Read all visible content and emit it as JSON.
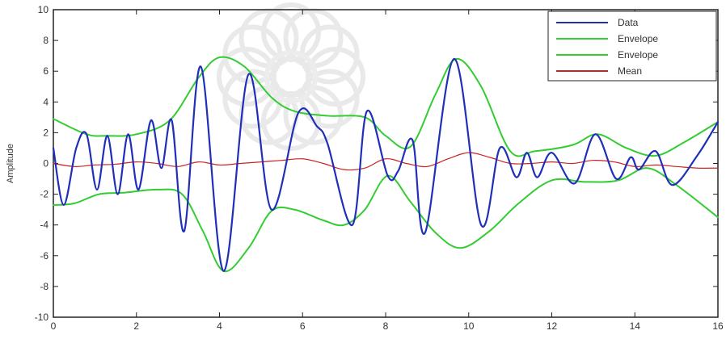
{
  "chart_data": {
    "type": "line",
    "ylabel": "Amplitude",
    "xlim": [
      0,
      16
    ],
    "ylim": [
      -10,
      10
    ],
    "x_ticks": [
      0,
      2,
      4,
      6,
      8,
      10,
      12,
      14,
      16
    ],
    "y_ticks": [
      -10,
      -8,
      -6,
      -4,
      -2,
      0,
      2,
      4,
      6,
      8,
      10
    ],
    "x_tick_labels": [
      "0",
      "2",
      "4",
      "6",
      "8",
      "10",
      "12",
      "14",
      "16"
    ],
    "y_tick_labels": [
      "-10",
      "-8",
      "-6",
      "-4",
      "-2",
      "0",
      "2",
      "4",
      "6",
      "8",
      "10"
    ],
    "grid": false,
    "legend_position": "top-right",
    "series": [
      {
        "name": "Data",
        "color": "#1f2fb8",
        "x": [
          0,
          0.25,
          0.55,
          0.8,
          1.05,
          1.3,
          1.55,
          1.8,
          2.05,
          2.35,
          2.6,
          2.85,
          3.15,
          3.55,
          4.1,
          4.7,
          5.25,
          5.9,
          6.35,
          6.6,
          7.2,
          7.55,
          8.05,
          8.3,
          8.65,
          8.95,
          9.65,
          10.3,
          10.75,
          11.15,
          11.4,
          11.65,
          12.0,
          12.55,
          13.05,
          13.55,
          13.9,
          14.1,
          14.5,
          14.9,
          15.5,
          16.0
        ],
        "y": [
          1.0,
          -2.7,
          1.0,
          1.9,
          -1.7,
          1.8,
          -2.0,
          1.9,
          -1.7,
          2.8,
          -0.3,
          2.8,
          -4.4,
          6.3,
          -7.0,
          5.8,
          -3.0,
          3.3,
          2.4,
          1.3,
          -4.0,
          3.4,
          -0.8,
          -0.5,
          1.5,
          -4.5,
          6.8,
          -4.0,
          1.0,
          -0.9,
          0.7,
          -0.9,
          0.7,
          -1.3,
          1.9,
          -1.0,
          0.4,
          -0.4,
          0.8,
          -1.4,
          0.5,
          2.7
        ]
      },
      {
        "name": "Envelope",
        "color": "#33cc33",
        "x": [
          0,
          0.8,
          1.3,
          2.0,
          2.8,
          3.5,
          4.0,
          4.6,
          5.25,
          5.8,
          6.6,
          7.5,
          8.0,
          8.6,
          9.2,
          9.7,
          10.3,
          11.0,
          11.6,
          12.5,
          13.1,
          13.8,
          14.5,
          15.2,
          16.0
        ],
        "y": [
          2.9,
          1.9,
          1.8,
          1.9,
          2.8,
          5.6,
          6.9,
          6.3,
          4.3,
          3.4,
          3.1,
          3.0,
          1.8,
          1.1,
          4.5,
          6.8,
          5.0,
          0.8,
          0.8,
          1.2,
          1.9,
          1.0,
          0.5,
          1.4,
          2.7
        ]
      },
      {
        "name": "Envelope",
        "color": "#33cc33",
        "x": [
          0,
          0.5,
          1.1,
          1.7,
          2.5,
          3.1,
          3.6,
          4.1,
          4.7,
          5.25,
          5.8,
          6.5,
          7.0,
          7.5,
          8.05,
          8.6,
          9.2,
          9.8,
          10.5,
          11.2,
          12.0,
          12.8,
          13.6,
          14.3,
          15.0,
          16.0
        ],
        "y": [
          -2.7,
          -2.6,
          -2.0,
          -1.9,
          -1.7,
          -2.0,
          -4.4,
          -7.0,
          -5.5,
          -3.1,
          -3.0,
          -3.7,
          -4.0,
          -3.0,
          -0.8,
          -2.5,
          -4.5,
          -5.5,
          -4.4,
          -2.6,
          -1.1,
          -1.2,
          -1.1,
          -0.3,
          -1.4,
          -3.5
        ]
      },
      {
        "name": "Mean",
        "color": "#cc2222",
        "x": [
          0,
          0.5,
          1.0,
          1.5,
          2.0,
          2.5,
          3.0,
          3.5,
          4.0,
          4.5,
          5.0,
          5.5,
          6.0,
          6.5,
          7.0,
          7.5,
          8.0,
          8.5,
          9.0,
          9.5,
          10.0,
          10.5,
          11.0,
          11.5,
          12.0,
          12.5,
          13.0,
          13.5,
          14.0,
          14.5,
          15.0,
          15.5,
          16.0
        ],
        "y": [
          0.0,
          -0.2,
          -0.1,
          -0.05,
          0.1,
          0.0,
          -0.2,
          0.1,
          -0.1,
          0.0,
          0.1,
          0.2,
          0.3,
          0.0,
          -0.4,
          -0.3,
          0.3,
          0.0,
          -0.2,
          0.3,
          0.7,
          0.4,
          0.0,
          0.0,
          0.1,
          0.0,
          0.2,
          0.1,
          -0.2,
          -0.1,
          -0.2,
          -0.3,
          -0.3
        ]
      }
    ]
  }
}
